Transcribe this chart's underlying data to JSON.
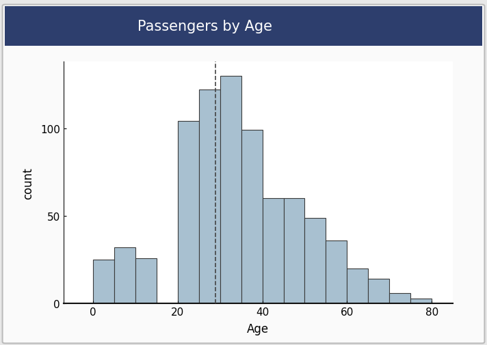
{
  "title": "Passengers by Age",
  "title_bg_color": "#2D3E6D",
  "title_text_color": "#FFFFFF",
  "xlabel": "Age",
  "ylabel": "count",
  "bin_edges": [
    -5,
    0,
    5,
    10,
    15,
    20,
    25,
    30,
    35,
    40,
    45,
    50,
    55,
    60,
    65,
    70,
    75,
    80,
    85
  ],
  "bar_heights": [
    0,
    25,
    32,
    26,
    0,
    104,
    122,
    130,
    99,
    60,
    60,
    49,
    36,
    20,
    14,
    6,
    3,
    0
  ],
  "bar_color": "#A8C0D0",
  "bar_edge_color": "#3A3A3A",
  "bar_edge_width": 0.8,
  "mean_line_x": 29.0,
  "mean_line_color": "#444444",
  "xlim": [
    -7,
    85
  ],
  "ylim": [
    0,
    138
  ],
  "xticks": [
    0,
    20,
    40,
    60,
    80
  ],
  "yticks": [
    0,
    50,
    100
  ],
  "bg_color": "#FFFFFF",
  "outer_bg_color": "#E8E8E8",
  "whiteboard_color": "#F5F5F5",
  "figsize": [
    7.12,
    5.06
  ],
  "dpi": 100,
  "title_fontsize": 15,
  "axis_label_fontsize": 12,
  "tick_fontsize": 11
}
